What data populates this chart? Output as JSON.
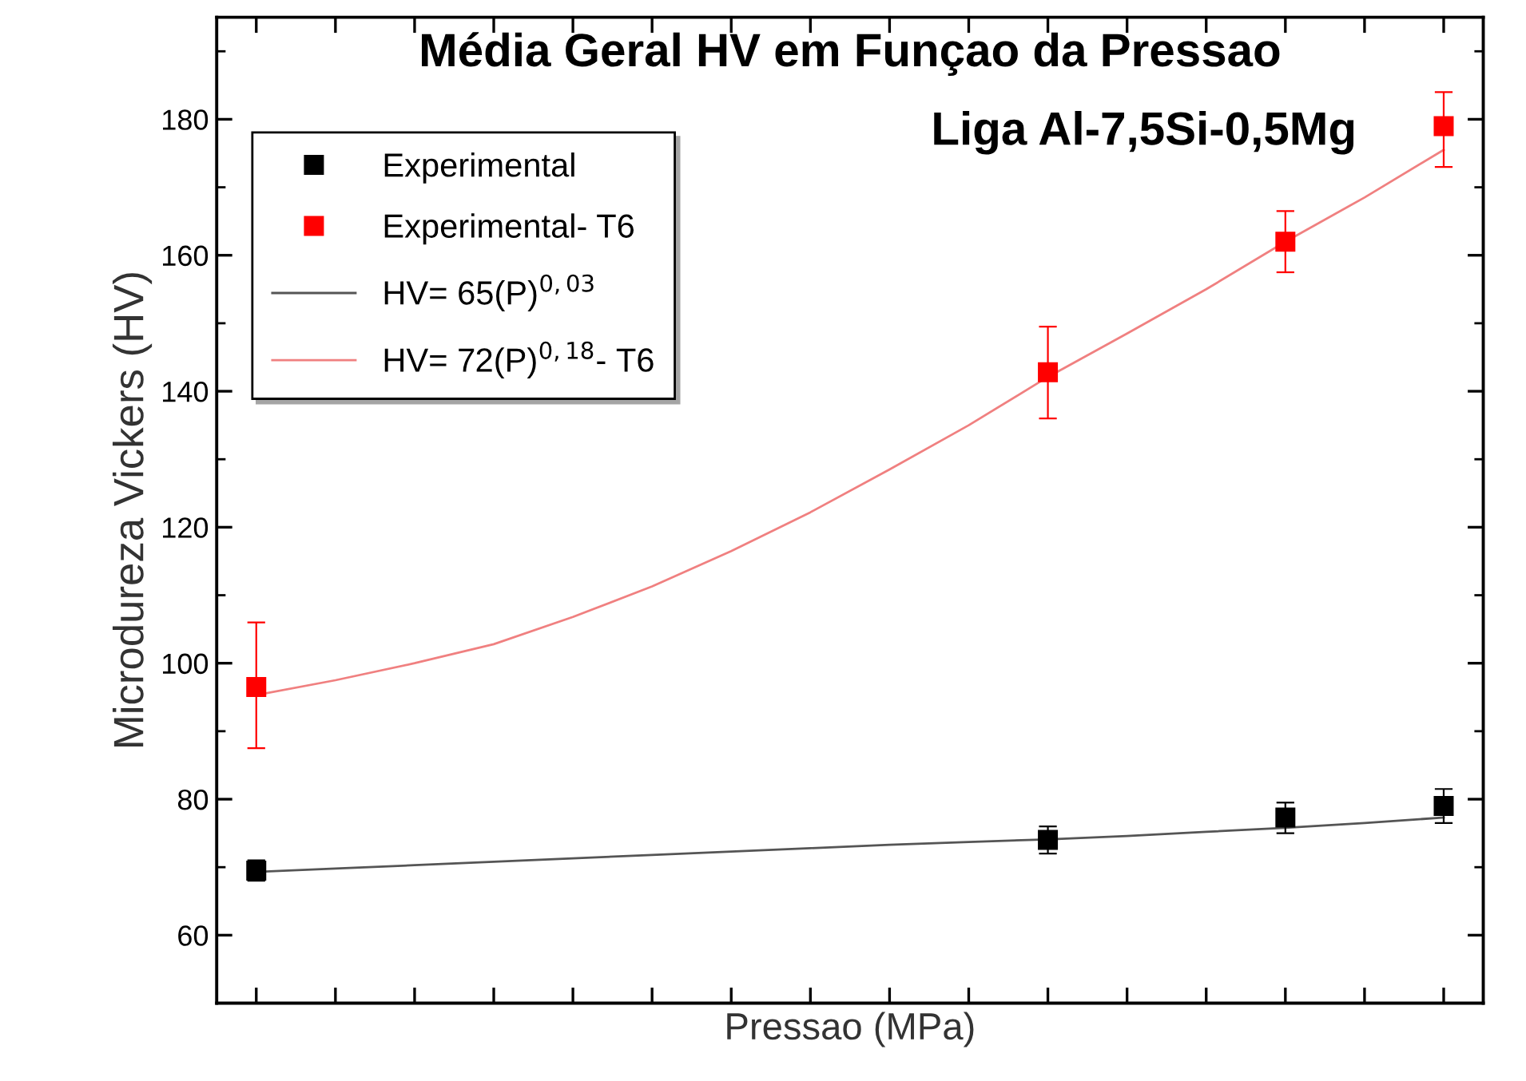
{
  "chart_data": {
    "type": "scatter",
    "title": "Média Geral HV em Funçao da Pressao",
    "subtitle": "Liga Al-7,5Si-0,5Mg",
    "xlabel": "Pressao (MPa)",
    "ylabel": "Microdureza Vickers (HV)",
    "categories": [
      null,
      null,
      null,
      null,
      null,
      null,
      null,
      null,
      null,
      null,
      null,
      null,
      null,
      null,
      null,
      null
    ],
    "ylim": [
      50,
      195
    ],
    "yticks": [
      60,
      80,
      100,
      120,
      140,
      160,
      180
    ],
    "tick_labels": "y",
    "legend": "top left",
    "marker": "square",
    "series": [
      {
        "name": "Experimental",
        "color": "#000000",
        "values": [
          69.5,
          null,
          null,
          null,
          null,
          null,
          null,
          null,
          null,
          null,
          74,
          null,
          null,
          77.3,
          null,
          79
        ],
        "errors": [
          [
            68,
            71
          ],
          null,
          null,
          null,
          null,
          null,
          null,
          null,
          null,
          null,
          [
            72,
            76
          ],
          null,
          null,
          [
            75,
            79.5
          ],
          null,
          [
            76.5,
            81.5
          ]
        ]
      },
      {
        "name": "Experimental- T6",
        "color": "#ff0000",
        "values": [
          96.5,
          null,
          null,
          null,
          null,
          null,
          null,
          null,
          null,
          null,
          142.8,
          null,
          null,
          162,
          null,
          179
        ],
        "errors": [
          [
            87.5,
            106
          ],
          null,
          null,
          null,
          null,
          null,
          null,
          null,
          null,
          null,
          [
            136,
            149.5
          ],
          null,
          null,
          [
            157.5,
            166.5
          ],
          null,
          [
            173,
            184
          ]
        ]
      },
      {
        "name": "HV= 65(P)$^{0,03}$",
        "type": "line",
        "marker": "none",
        "color": "#555555",
        "values": [
          69.3,
          69.8,
          70.3,
          70.8,
          71.3,
          71.8,
          72.3,
          72.8,
          73.3,
          73.7,
          74.1,
          74.6,
          75.2,
          75.8,
          76.5,
          77.3
        ]
      },
      {
        "name": "HV= 72(P)$^{0,18}$- T6",
        "type": "line",
        "marker": "none",
        "color": "#f08080",
        "values": [
          95.3,
          97.5,
          100,
          102.8,
          106.8,
          111.3,
          116.5,
          122.2,
          128.5,
          135,
          142.1,
          148.5,
          155,
          162,
          168.5,
          175.5
        ]
      }
    ]
  }
}
